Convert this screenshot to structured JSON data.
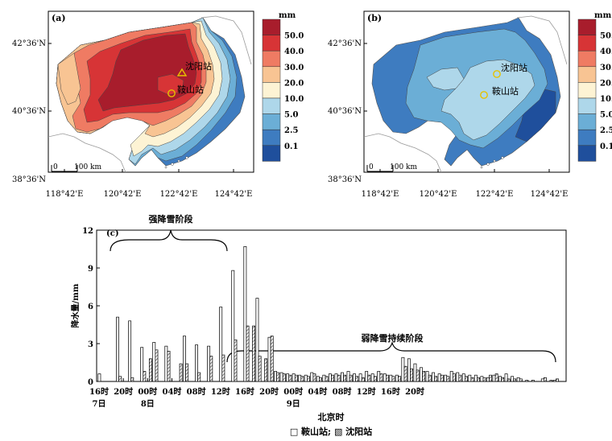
{
  "maps": [
    {
      "panel_label": "(a)",
      "unit": "mm",
      "lat_ticks": [
        "42°36'N",
        "40°36'N",
        "38°36'N"
      ],
      "lon_ticks": [
        "118°42'E",
        "120°42'E",
        "122°42'E",
        "124°42'E"
      ],
      "scale_text": "100 km",
      "scale_zero": "0",
      "stations": [
        {
          "name": "沈阳站",
          "marker": "triangle"
        },
        {
          "name": "鞍山站",
          "marker": "circle"
        }
      ]
    },
    {
      "panel_label": "(b)",
      "unit": "mm",
      "lat_ticks": [
        "42°36'N",
        "40°36'N",
        "38°36'N"
      ],
      "lon_ticks": [
        "118°42'E",
        "120°42'E",
        "122°42'E",
        "124°42'E"
      ],
      "scale_text": "100 km",
      "scale_zero": "0",
      "stations": [
        {
          "name": "沈阳站",
          "marker": "circle"
        },
        {
          "name": "鞍山站",
          "marker": "circle"
        }
      ]
    }
  ],
  "colorbar": {
    "levels": [
      "50.0",
      "40.0",
      "30.0",
      "20.0",
      "10.0",
      "5.0",
      "2.5",
      "0.1"
    ],
    "colors": [
      "#a81d2c",
      "#d73436",
      "#ef7b63",
      "#f8c493",
      "#fdf3d4",
      "#aed7ea",
      "#6baed6",
      "#3e7cc0",
      "#1f4f9c"
    ]
  },
  "chart_data": {
    "type": "bar",
    "panel_label": "(c)",
    "ylabel": "降水量/mm",
    "xlabel": "北京时",
    "ylim": [
      0,
      12
    ],
    "yticks": [
      0,
      3,
      6,
      9,
      12
    ],
    "x_tick_labels": [
      "16时",
      "20时",
      "00时",
      "04时",
      "08时",
      "12时",
      "16时",
      "20时",
      "00时",
      "04时",
      "08时",
      "12时",
      "16时",
      "20时"
    ],
    "date_labels": [
      {
        "text": "7日",
        "tick": 0
      },
      {
        "text": "8日",
        "tick": 2
      },
      {
        "text": "9日",
        "tick": 8
      }
    ],
    "annotations": [
      "强降雪阶段",
      "弱降雪持续阶段"
    ],
    "legend_text": "□ 鞍山站; ▧ 沈阳站",
    "hours": 76,
    "series": [
      {
        "name": "鞍山站",
        "pattern": "open",
        "values": [
          0.6,
          0,
          0,
          5.1,
          0,
          4.8,
          0,
          2.7,
          0,
          3.1,
          0,
          2.8,
          0,
          0,
          3.6,
          0,
          2.9,
          0,
          2.8,
          0,
          5.9,
          0,
          8.8,
          0,
          10.7,
          0,
          6.6,
          0,
          3.5,
          0.8,
          0.7,
          0.6,
          0.6,
          0.5,
          0.5,
          0.7,
          0.4,
          0.5,
          0.6,
          0.6,
          0.7,
          0.8,
          0.6,
          0.6,
          0.8,
          0.6,
          0.8,
          0.6,
          0.5,
          0.5,
          1.9,
          1.8,
          1.4,
          1.1,
          0.8,
          0.7,
          0.6,
          0.5,
          0.8,
          0.7,
          0.6,
          0.5,
          0.5,
          0.4,
          0.3,
          0.5,
          0.4,
          0.6,
          0.4,
          0.3,
          0,
          0,
          0,
          0.2,
          0,
          0.1
        ]
      },
      {
        "name": "沈阳站",
        "pattern": "hatched",
        "values": [
          0,
          0,
          0,
          0.4,
          0,
          0.3,
          0,
          0.8,
          1.8,
          2.5,
          0,
          2.4,
          0,
          1.4,
          1.4,
          0,
          0.7,
          0,
          2.0,
          0,
          2.1,
          0,
          3.3,
          0,
          4.4,
          4.4,
          2.0,
          1.8,
          3.6,
          0.7,
          0.6,
          0.5,
          0.5,
          0.4,
          0.4,
          0.6,
          0.3,
          0.4,
          0.5,
          0.5,
          0.5,
          0.5,
          0.4,
          0.3,
          0.5,
          0.4,
          0.6,
          0.5,
          0.4,
          0.4,
          1.2,
          1.0,
          0.9,
          0.8,
          0.5,
          0.4,
          0.5,
          0.4,
          0.6,
          0.5,
          0.4,
          0.3,
          0.3,
          0.3,
          0.5,
          0.6,
          0.3,
          0.2,
          0.2,
          0.2,
          0.1,
          0.1,
          0,
          0.3,
          0.1,
          0.2
        ]
      }
    ]
  }
}
